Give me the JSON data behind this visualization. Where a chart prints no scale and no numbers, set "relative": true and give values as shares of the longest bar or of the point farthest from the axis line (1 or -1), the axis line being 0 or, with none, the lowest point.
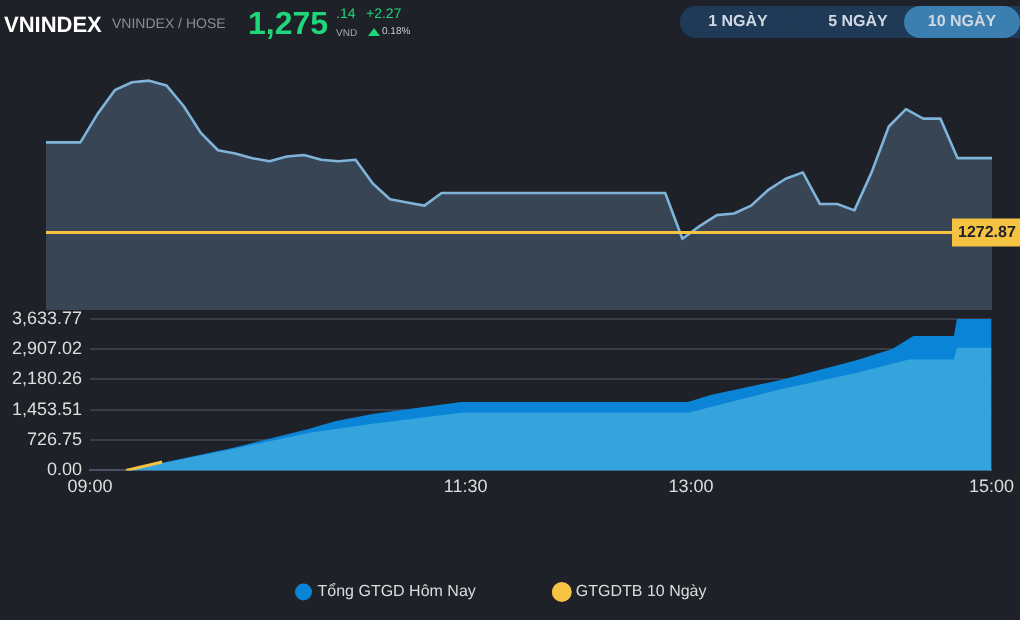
{
  "chart_data": [
    {
      "type": "area",
      "title": "VNINDEX",
      "subtitle": "VNINDEX / HOSE",
      "annotations": [
        "1,275",
        ".14",
        "VND",
        "+2.27",
        "0.18%",
        "1 NGÀY",
        "5 NGÀY",
        "10 NGÀY",
        "1272.87"
      ],
      "relative": true,
      "color": "#7fb3d9",
      "categories": [
        null,
        null,
        null,
        null,
        null,
        null,
        null,
        null,
        null,
        null,
        null,
        null,
        null,
        null,
        null,
        null,
        null,
        null,
        null,
        null,
        null,
        null,
        null,
        null,
        null,
        null,
        null,
        null,
        null,
        null,
        null,
        null,
        null,
        null,
        null,
        null,
        null,
        null,
        null,
        null,
        null,
        null,
        null,
        null,
        null,
        null,
        null,
        null,
        null,
        null,
        null,
        null,
        null,
        null,
        null,
        null
      ],
      "values": [
        0.61,
        0.61,
        0.61,
        0.79,
        0.94,
        0.99,
        1,
        0.97,
        0.84,
        0.67,
        0.56,
        0.54,
        0.51,
        0.49,
        0.52,
        0.53,
        0.5,
        0.49,
        0.5,
        0.35,
        0.25,
        0.23,
        0.21,
        0.29,
        0.29,
        0.29,
        0.29,
        0.29,
        0.29,
        0.29,
        0.29,
        0.29,
        0.29,
        0.29,
        0.29,
        0.29,
        0.29,
        0,
        0.08,
        0.15,
        0.16,
        0.21,
        0.31,
        0.38,
        0.42,
        0.22,
        0.22,
        0.18,
        0.42,
        0.71,
        0.82,
        0.76,
        0.76,
        0.51,
        0.51,
        0.51
      ],
      "ref_lines": [
        {
          "axis": "y",
          "value": 0.04,
          "color": "#f5c242"
        }
      ]
    },
    {
      "type": "area",
      "xlim": [
        9,
        15
      ],
      "xticks": [
        {
          "value": 9,
          "label": "09:00"
        },
        {
          "value": 11.5,
          "label": "11:30"
        },
        {
          "value": 13,
          "label": "13:00"
        },
        {
          "value": 15,
          "label": "15:00"
        }
      ],
      "ylim": [
        0,
        3633.77
      ],
      "yticks": [
        {
          "value": 0,
          "label": "0.00"
        },
        {
          "value": 726.75,
          "label": "726.75"
        },
        {
          "value": 1453.51,
          "label": "1,453.51"
        },
        {
          "value": 2180.26,
          "label": "2,180.26"
        },
        {
          "value": 2907.02,
          "label": "2,907.02"
        },
        {
          "value": 3633.77,
          "label": "3,633.77"
        }
      ],
      "grid": "y",
      "legend": "bottom",
      "series": [
        {
          "name": "Tổng GTGD Hôm Nay",
          "color": "#0a84d6",
          "x": [
            9,
            9.24,
            9.96,
            10.46,
            10.63,
            10.88,
            11.22,
            11.47,
            12.98,
            13.13,
            13.59,
            14.09,
            14.34,
            14.48,
            14.75,
            14.77,
            15
          ],
          "values": [
            0,
            0,
            550,
            1000,
            1180,
            1350,
            1520,
            1640,
            1640,
            1810,
            2160,
            2630,
            2910,
            3220,
            3220,
            3630,
            3630
          ]
        },
        {
          "color": "#35a4dd",
          "x": [
            9,
            9.24,
            9.96,
            10.46,
            10.88,
            11.47,
            12.98,
            13.59,
            14.09,
            14.45,
            14.75,
            14.77,
            15
          ],
          "values": [
            0,
            0,
            520,
            900,
            1120,
            1380,
            1380,
            1940,
            2330,
            2660,
            2660,
            2940,
            2940
          ]
        },
        {
          "name": "GTGDTB 10 Ngày",
          "type": "line",
          "color": "#f5c242",
          "x": [
            9.24,
            9.48
          ],
          "values": [
            0,
            200
          ]
        }
      ]
    }
  ]
}
